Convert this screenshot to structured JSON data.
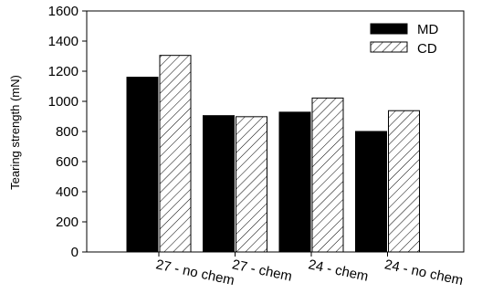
{
  "chart_data": {
    "type": "bar",
    "categories": [
      "27 - no chem",
      "27 - chem",
      "24 - chem",
      "24 - no chem"
    ],
    "series": [
      {
        "name": "MD",
        "values": [
          1160,
          905,
          928,
          800
        ],
        "fill": "solid",
        "color": "#000000"
      },
      {
        "name": "CD",
        "values": [
          1305,
          898,
          1022,
          938
        ],
        "fill": "hatched",
        "color": "#000000"
      }
    ],
    "ylabel": "Tearing strength (mN)",
    "xlabel": "",
    "ylim": [
      0,
      1600
    ],
    "yticks": [
      0,
      200,
      400,
      600,
      800,
      1000,
      1200,
      1400,
      1600
    ],
    "ytick_labels": [
      "0",
      "200",
      "400",
      "600",
      "800",
      "1000",
      "1200",
      "1400",
      "1600"
    ],
    "legend_position": "top-right",
    "grid": false
  }
}
